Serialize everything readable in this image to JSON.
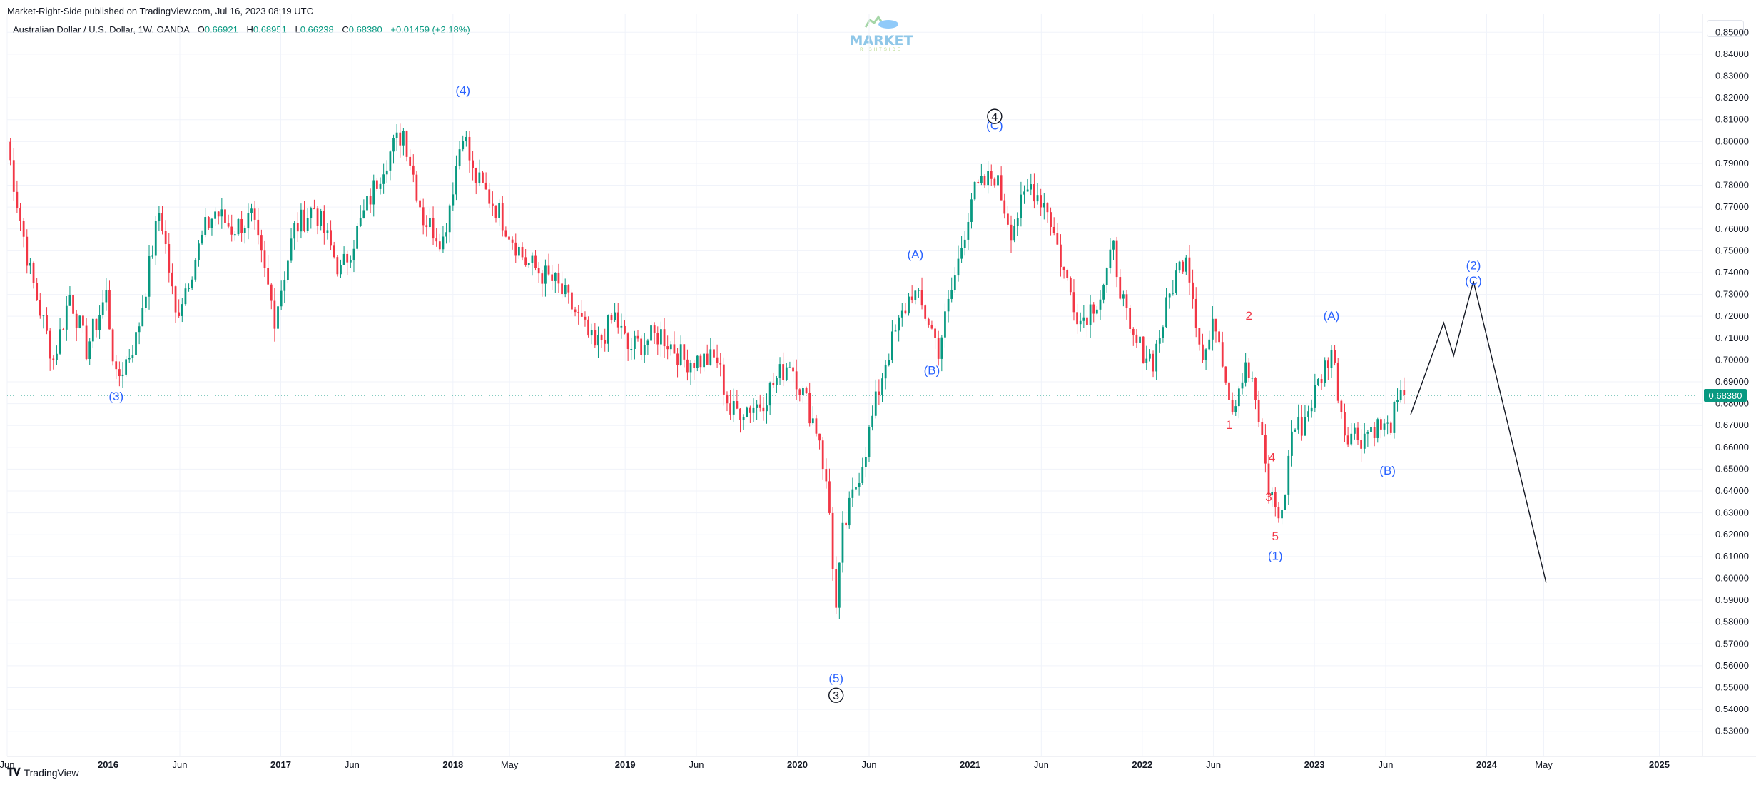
{
  "header": {
    "publisher_line": "Market-Right-Side published on TradingView.com, Jul 16, 2023 08:19 UTC"
  },
  "legend": {
    "symbol": "Australian Dollar / U.S. Dollar, 1W, OANDA",
    "open_label": "O",
    "open": "0.66921",
    "high_label": "H",
    "high": "0.68951",
    "low_label": "L",
    "low": "0.66238",
    "close_label": "C",
    "close": "0.68380",
    "change": "+0.01459 (+2.18%)"
  },
  "watermark": {
    "text": "MARKET",
    "subtext": "RIGHTSIDE"
  },
  "footer": {
    "brand": "TradingView"
  },
  "colors": {
    "up": "#089981",
    "down": "#f23645",
    "wave_blue": "#2962ff",
    "wave_red": "#f23645",
    "grid": "#f0f3fa",
    "price_tag": "#089981"
  },
  "chart_data": {
    "type": "candlestick",
    "ylim": [
      0.525,
      0.855
    ],
    "y_ticks": [
      "0.53000",
      "0.54000",
      "0.55000",
      "0.56000",
      "0.57000",
      "0.58000",
      "0.59000",
      "0.60000",
      "0.61000",
      "0.62000",
      "0.63000",
      "0.64000",
      "0.65000",
      "0.66000",
      "0.67000",
      "0.68000",
      "0.69000",
      "0.70000",
      "0.71000",
      "0.72000",
      "0.73000",
      "0.74000",
      "0.75000",
      "0.76000",
      "0.77000",
      "0.78000",
      "0.79000",
      "0.80000",
      "0.81000",
      "0.82000",
      "0.83000",
      "0.84000",
      "0.85000"
    ],
    "x_range": [
      "2015-06-01",
      "2025-04-01"
    ],
    "x_ticks": [
      {
        "label": "Jun",
        "date": "2015-06-01",
        "bold": false
      },
      {
        "label": "2016",
        "date": "2016-01-01",
        "bold": true
      },
      {
        "label": "Jun",
        "date": "2016-06-01",
        "bold": false
      },
      {
        "label": "2017",
        "date": "2017-01-01",
        "bold": true
      },
      {
        "label": "Jun",
        "date": "2017-06-01",
        "bold": false
      },
      {
        "label": "2018",
        "date": "2018-01-01",
        "bold": true
      },
      {
        "label": "May",
        "date": "2018-05-01",
        "bold": false
      },
      {
        "label": "2019",
        "date": "2019-01-01",
        "bold": true
      },
      {
        "label": "Jun",
        "date": "2019-06-01",
        "bold": false
      },
      {
        "label": "2020",
        "date": "2020-01-01",
        "bold": true
      },
      {
        "label": "Jun",
        "date": "2020-06-01",
        "bold": false
      },
      {
        "label": "2021",
        "date": "2021-01-01",
        "bold": true
      },
      {
        "label": "Jun",
        "date": "2021-06-01",
        "bold": false
      },
      {
        "label": "2022",
        "date": "2022-01-01",
        "bold": true
      },
      {
        "label": "Jun",
        "date": "2022-06-01",
        "bold": false
      },
      {
        "label": "2023",
        "date": "2023-01-01",
        "bold": true
      },
      {
        "label": "Jun",
        "date": "2023-06-01",
        "bold": false
      },
      {
        "label": "2024",
        "date": "2024-01-01",
        "bold": true
      },
      {
        "label": "May",
        "date": "2024-05-01",
        "bold": false
      },
      {
        "label": "2025",
        "date": "2025-01-01",
        "bold": true
      }
    ],
    "price_keypoints": [
      {
        "date": "2015-06-01",
        "price": 0.8
      },
      {
        "date": "2015-06-20",
        "price": 0.775
      },
      {
        "date": "2015-07-20",
        "price": 0.74
      },
      {
        "date": "2015-09-07",
        "price": 0.7
      },
      {
        "date": "2015-10-12",
        "price": 0.73
      },
      {
        "date": "2015-11-16",
        "price": 0.705
      },
      {
        "date": "2015-12-28",
        "price": 0.73
      },
      {
        "date": "2016-01-18",
        "price": 0.69
      },
      {
        "date": "2016-03-01",
        "price": 0.71
      },
      {
        "date": "2016-04-20",
        "price": 0.77
      },
      {
        "date": "2016-05-23",
        "price": 0.72
      },
      {
        "date": "2016-07-25",
        "price": 0.76
      },
      {
        "date": "2016-08-15",
        "price": 0.768
      },
      {
        "date": "2016-09-20",
        "price": 0.76
      },
      {
        "date": "2016-10-31",
        "price": 0.765
      },
      {
        "date": "2016-12-19",
        "price": 0.72
      },
      {
        "date": "2017-01-30",
        "price": 0.76
      },
      {
        "date": "2017-03-13",
        "price": 0.77
      },
      {
        "date": "2017-05-08",
        "price": 0.74
      },
      {
        "date": "2017-06-05",
        "price": 0.755
      },
      {
        "date": "2017-08-07",
        "price": 0.79
      },
      {
        "date": "2017-09-18",
        "price": 0.805
      },
      {
        "date": "2017-10-30",
        "price": 0.765
      },
      {
        "date": "2017-12-11",
        "price": 0.755
      },
      {
        "date": "2018-01-22",
        "price": 0.806
      },
      {
        "date": "2018-02-12",
        "price": 0.785
      },
      {
        "date": "2018-04-02",
        "price": 0.77
      },
      {
        "date": "2018-06-04",
        "price": 0.745
      },
      {
        "date": "2018-08-06",
        "price": 0.735
      },
      {
        "date": "2018-09-17",
        "price": 0.722
      },
      {
        "date": "2018-10-29",
        "price": 0.705
      },
      {
        "date": "2018-12-10",
        "price": 0.72
      },
      {
        "date": "2019-01-07",
        "price": 0.705
      },
      {
        "date": "2019-03-18",
        "price": 0.712
      },
      {
        "date": "2019-05-06",
        "price": 0.7
      },
      {
        "date": "2019-07-15",
        "price": 0.7
      },
      {
        "date": "2019-08-12",
        "price": 0.676
      },
      {
        "date": "2019-10-14",
        "price": 0.68
      },
      {
        "date": "2019-12-16",
        "price": 0.7
      },
      {
        "date": "2020-02-17",
        "price": 0.665
      },
      {
        "date": "2020-03-09",
        "price": 0.63
      },
      {
        "date": "2020-03-23",
        "price": 0.585
      },
      {
        "date": "2020-04-06",
        "price": 0.62
      },
      {
        "date": "2020-05-25",
        "price": 0.66
      },
      {
        "date": "2020-07-06",
        "price": 0.7
      },
      {
        "date": "2020-08-31",
        "price": 0.732
      },
      {
        "date": "2020-10-05",
        "price": 0.718
      },
      {
        "date": "2020-10-26",
        "price": 0.705
      },
      {
        "date": "2020-12-07",
        "price": 0.745
      },
      {
        "date": "2021-01-04",
        "price": 0.775
      },
      {
        "date": "2021-02-22",
        "price": 0.785
      },
      {
        "date": "2021-03-29",
        "price": 0.76
      },
      {
        "date": "2021-05-10",
        "price": 0.78
      },
      {
        "date": "2021-06-14",
        "price": 0.77
      },
      {
        "date": "2021-07-19",
        "price": 0.74
      },
      {
        "date": "2021-08-23",
        "price": 0.718
      },
      {
        "date": "2021-10-04",
        "price": 0.73
      },
      {
        "date": "2021-11-01",
        "price": 0.75
      },
      {
        "date": "2021-12-06",
        "price": 0.71
      },
      {
        "date": "2022-01-24",
        "price": 0.7
      },
      {
        "date": "2022-03-07",
        "price": 0.735
      },
      {
        "date": "2022-04-04",
        "price": 0.75
      },
      {
        "date": "2022-05-09",
        "price": 0.7
      },
      {
        "date": "2022-06-06",
        "price": 0.718
      },
      {
        "date": "2022-07-11",
        "price": 0.678
      },
      {
        "date": "2022-08-08",
        "price": 0.7
      },
      {
        "date": "2022-08-29",
        "price": 0.682
      },
      {
        "date": "2022-09-26",
        "price": 0.64
      },
      {
        "date": "2022-10-10",
        "price": 0.633
      },
      {
        "date": "2022-10-24",
        "price": 0.628
      },
      {
        "date": "2022-11-14",
        "price": 0.668
      },
      {
        "date": "2022-12-05",
        "price": 0.67
      },
      {
        "date": "2023-01-02",
        "price": 0.685
      },
      {
        "date": "2023-02-06",
        "price": 0.705
      },
      {
        "date": "2023-03-06",
        "price": 0.668
      },
      {
        "date": "2023-04-10",
        "price": 0.665
      },
      {
        "date": "2023-05-08",
        "price": 0.67
      },
      {
        "date": "2023-06-05",
        "price": 0.668
      },
      {
        "date": "2023-06-19",
        "price": 0.675
      },
      {
        "date": "2023-07-10",
        "price": 0.684
      }
    ],
    "last_price": 0.6838,
    "last_price_label": "0.68380",
    "projection_path": [
      {
        "date": "2023-07-24",
        "price": 0.675
      },
      {
        "date": "2023-10-02",
        "price": 0.717
      },
      {
        "date": "2023-10-23",
        "price": 0.702
      },
      {
        "date": "2023-12-04",
        "price": 0.736
      },
      {
        "date": "2024-05-06",
        "price": 0.598
      }
    ],
    "wave_labels": [
      {
        "text": "(3)",
        "date": "2016-01-18",
        "price": 0.6815,
        "color": "blue"
      },
      {
        "text": "(4)",
        "date": "2018-01-22",
        "price": 0.8215,
        "color": "blue"
      },
      {
        "text": "(5)",
        "date": "2020-03-23",
        "price": 0.5525,
        "color": "blue"
      },
      {
        "text": "(A)",
        "date": "2020-09-07",
        "price": 0.7465,
        "color": "blue"
      },
      {
        "text": "(B)",
        "date": "2020-10-12",
        "price": 0.6935,
        "color": "blue"
      },
      {
        "text": "(C)",
        "date": "2021-02-22",
        "price": 0.8055,
        "color": "blue"
      },
      {
        "text": "2",
        "date": "2022-08-15",
        "price": 0.7185,
        "color": "red"
      },
      {
        "text": "1",
        "date": "2022-07-04",
        "price": 0.6685,
        "color": "red"
      },
      {
        "text": "4",
        "date": "2022-10-03",
        "price": 0.6535,
        "color": "red"
      },
      {
        "text": "3",
        "date": "2022-09-26",
        "price": 0.6355,
        "color": "red"
      },
      {
        "text": "5",
        "date": "2022-10-10",
        "price": 0.6175,
        "color": "red"
      },
      {
        "text": "(1)",
        "date": "2022-10-10",
        "price": 0.6085,
        "color": "blue"
      },
      {
        "text": "(A)",
        "date": "2023-02-06",
        "price": 0.7185,
        "color": "blue"
      },
      {
        "text": "(B)",
        "date": "2023-06-05",
        "price": 0.6475,
        "color": "blue"
      },
      {
        "text": "(2)",
        "date": "2023-12-04",
        "price": 0.7415,
        "color": "blue"
      },
      {
        "text": "(C)",
        "date": "2023-12-04",
        "price": 0.7345,
        "color": "blue"
      }
    ],
    "circled_labels": [
      {
        "text": "4",
        "date": "2021-02-22",
        "price": 0.8115
      },
      {
        "text": "3",
        "date": "2020-03-23",
        "price": 0.5465
      }
    ]
  }
}
